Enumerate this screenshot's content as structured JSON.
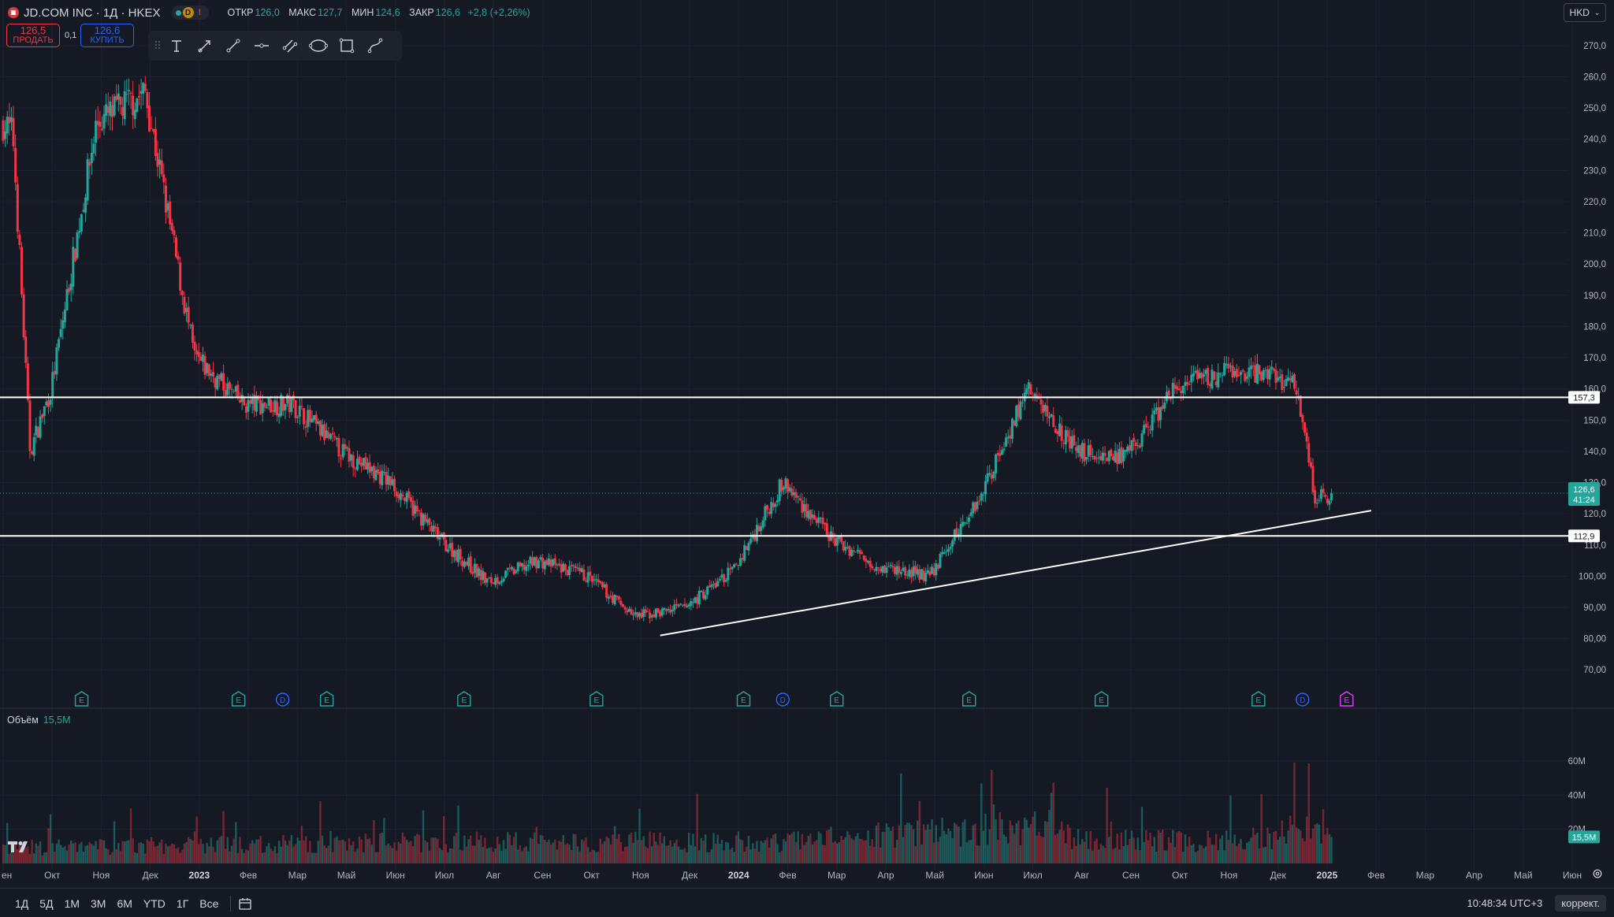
{
  "header": {
    "symbol": "JD.COM INC · 1Д · HKEX",
    "market_status": "D",
    "open_label": "ОТКР",
    "open_value": "126,0",
    "high_label": "МАКС",
    "high_value": "127,7",
    "low_label": "МИН",
    "low_value": "124,6",
    "close_label": "ЗАКР",
    "close_value": "126,6",
    "change": "+2,8 (+2,26%)"
  },
  "trade": {
    "sell_price": "126,5",
    "sell_label": "ПРОДАТЬ",
    "spread": "0,1",
    "buy_price": "126,6",
    "buy_label": "КУПИТЬ"
  },
  "currency": "HKD",
  "toolbar": {
    "icons": [
      "text-icon",
      "arrow-line-icon",
      "trend-line-icon",
      "horizontal-ray-icon",
      "parallel-channel-icon",
      "ellipse-icon",
      "rectangle-icon",
      "path-icon"
    ]
  },
  "volume": {
    "label": "Объём",
    "value": "15,5M"
  },
  "bottom": {
    "timeframes": [
      "1Д",
      "5Д",
      "1M",
      "3M",
      "6M",
      "YTD",
      "1Г",
      "Все"
    ],
    "clock": "10:48:34 UTC+3",
    "adjust_label": "коррект."
  },
  "colors": {
    "background": "#151924",
    "up": "#26a69a",
    "down": "#f23645",
    "grid": "#1f2330",
    "accent": "#2962ff"
  },
  "chart_data": {
    "type": "candlestick",
    "price_axis": {
      "ticks": [
        70,
        80,
        90,
        100,
        110,
        120,
        130,
        140,
        150,
        160,
        170,
        180,
        190,
        200,
        210,
        220,
        230,
        240,
        250,
        260,
        270
      ],
      "tick_labels": [
        "70,00",
        "80,00",
        "90,00",
        "100,00",
        "110,0",
        "120,0",
        "130,0",
        "140,0",
        "150,0",
        "160,0",
        "170,0",
        "180,0",
        "190,0",
        "200,0",
        "210,0",
        "220,0",
        "230,0",
        "240,0",
        "250,0",
        "260,0",
        "270,0"
      ],
      "range": [
        64,
        274
      ]
    },
    "volume_axis": {
      "tick_labels": [
        "20M",
        "40M",
        "60M"
      ],
      "ticks": [
        20,
        40,
        60
      ],
      "unit": "M"
    },
    "time_axis": [
      "ен",
      "Окт",
      "Ноя",
      "Дек",
      "2023",
      "Фев",
      "Мар",
      "Май",
      "Июн",
      "Июл",
      "Авг",
      "Сен",
      "Окт",
      "Ноя",
      "Дек",
      "2024",
      "Фев",
      "Мар",
      "Апр",
      "Май",
      "Июн",
      "Июл",
      "Авг",
      "Сен",
      "Окт",
      "Ноя",
      "Дек",
      "2025",
      "Фев",
      "Мар",
      "Апр",
      "Май",
      "Июн"
    ],
    "price_path": [
      [
        0,
        245
      ],
      [
        0.2,
        242
      ],
      [
        0.55,
        140
      ],
      [
        0.98,
        160
      ],
      [
        1.9,
        245
      ],
      [
        2.9,
        255
      ],
      [
        3.9,
        170
      ],
      [
        4.9,
        155
      ],
      [
        5.9,
        155
      ],
      [
        6.9,
        140
      ],
      [
        7.9,
        130
      ],
      [
        8.9,
        112
      ],
      [
        9.9,
        98
      ],
      [
        10.9,
        105
      ],
      [
        11.9,
        100
      ],
      [
        12.9,
        87
      ],
      [
        13.9,
        90
      ],
      [
        14.9,
        102
      ],
      [
        15.9,
        130
      ],
      [
        16.9,
        112
      ],
      [
        17.9,
        103
      ],
      [
        18.9,
        100
      ],
      [
        19.9,
        125
      ],
      [
        20.9,
        160
      ],
      [
        21.9,
        140
      ],
      [
        22.9,
        138
      ],
      [
        23.9,
        160
      ],
      [
        24.9,
        165
      ],
      [
        25.9,
        165
      ],
      [
        26.4,
        160
      ],
      [
        26.75,
        125
      ],
      [
        27.1,
        126.6
      ]
    ],
    "volume_levels": [
      [
        0,
        10
      ],
      [
        8.9,
        14
      ],
      [
        15.9,
        14
      ],
      [
        21,
        24
      ],
      [
        22,
        16
      ],
      [
        25,
        14
      ],
      [
        26.5,
        22
      ],
      [
        27.1,
        15.5
      ]
    ],
    "horizontal_levels": [
      157.3,
      112.9
    ],
    "level_labels": [
      "157,3",
      "112,9"
    ],
    "trendline": {
      "from": {
        "x": 13.4,
        "y": 81
      },
      "to": {
        "x": 27.9,
        "y": 121
      }
    },
    "current": {
      "price": "126,6",
      "countdown": "41:24",
      "volume_badge": "15,5M"
    },
    "events": [
      {
        "type": "E",
        "x": 1.6
      },
      {
        "type": "E",
        "x": 4.8
      },
      {
        "type": "D",
        "x": 5.7
      },
      {
        "type": "E",
        "x": 6.6
      },
      {
        "type": "E",
        "x": 9.4
      },
      {
        "type": "E",
        "x": 12.1
      },
      {
        "type": "E",
        "x": 15.1
      },
      {
        "type": "D",
        "x": 15.9
      },
      {
        "type": "E",
        "x": 17.0
      },
      {
        "type": "E",
        "x": 19.7
      },
      {
        "type": "E",
        "x": 22.4
      },
      {
        "type": "E",
        "x": 25.6
      },
      {
        "type": "D",
        "x": 26.5
      },
      {
        "type": "E",
        "x": 27.4,
        "upcoming": true
      }
    ]
  }
}
